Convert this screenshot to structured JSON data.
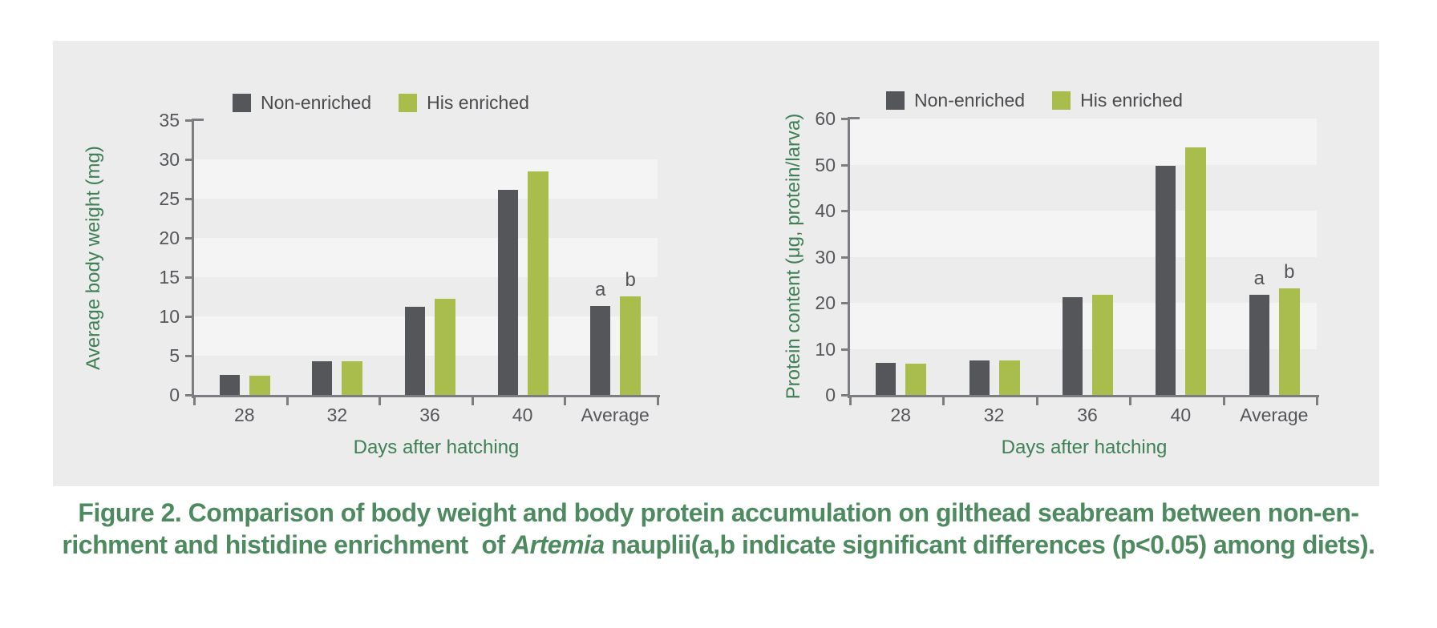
{
  "page": {
    "background": "#ffffff"
  },
  "panel": {
    "background": "#ececec",
    "stripe_color": "#f4f4f5"
  },
  "colors": {
    "non_enriched_bar": "#54565a",
    "his_enriched_bar": "#a8bd4c",
    "axis": "#7b7d80",
    "tick_text": "#55565a",
    "axis_title_green": "#3f8055",
    "caption_green": "#4e8a5f"
  },
  "chart_data": [
    {
      "type": "bar",
      "title": "",
      "categories": [
        "28",
        "32",
        "36",
        "40",
        "Average"
      ],
      "series": [
        {
          "name": "Non-enriched",
          "color": "#54565a",
          "values": [
            2.6,
            4.3,
            11.2,
            26.1,
            11.3
          ]
        },
        {
          "name": "His enriched",
          "color": "#a8bd4c",
          "values": [
            2.5,
            4.3,
            12.2,
            28.5,
            12.6
          ]
        }
      ],
      "xlabel": "Days after hatching",
      "ylabel": "Average body weight (mg)",
      "ylim": [
        0,
        35
      ],
      "yticks": [
        0,
        5,
        10,
        15,
        20,
        25,
        30,
        35
      ],
      "grid": "alternating horizontal bands, no gridlines",
      "legend_position": "top",
      "annotations": [
        {
          "category_index": 4,
          "series_index": 0,
          "text": "a"
        },
        {
          "category_index": 4,
          "series_index": 1,
          "text": "b"
        }
      ]
    },
    {
      "type": "bar",
      "title": "",
      "categories": [
        "28",
        "32",
        "36",
        "40",
        "Average"
      ],
      "series": [
        {
          "name": "Non-enriched",
          "color": "#54565a",
          "values": [
            7.0,
            7.5,
            21.2,
            49.8,
            21.8
          ]
        },
        {
          "name": "His enriched",
          "color": "#a8bd4c",
          "values": [
            6.7,
            7.5,
            21.8,
            53.7,
            23.2
          ]
        }
      ],
      "xlabel": "Days after hatching",
      "ylabel": "Protein content (μg, protein/larva)",
      "ylim": [
        0,
        60
      ],
      "yticks": [
        0,
        10,
        20,
        30,
        40,
        50,
        60
      ],
      "grid": "alternating horizontal bands, no gridlines",
      "legend_position": "top",
      "annotations": [
        {
          "category_index": 4,
          "series_index": 0,
          "text": "a"
        },
        {
          "category_index": 4,
          "series_index": 1,
          "text": "b"
        }
      ]
    }
  ],
  "caption": {
    "line1": "Figure 2. Comparison of body weight and body protein accumulation on gilthead seabream between non-en-",
    "line2_pre": "richment and histidine enrichment  of ",
    "line2_italic": "Artemia",
    "line2_post": " nauplii(a,b indicate significant differences (p<0.05) among diets)."
  }
}
